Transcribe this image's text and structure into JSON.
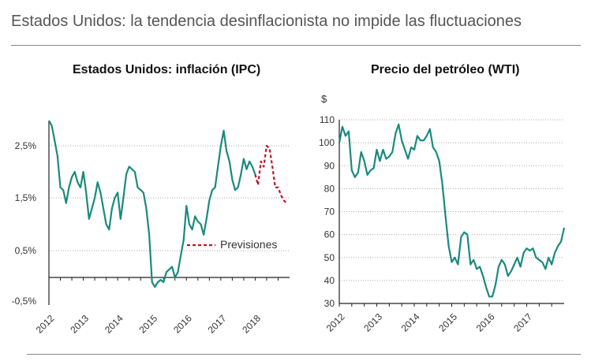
{
  "main_title": "Estados Unidos: la tendencia desinflacionista no impide las fluctuaciones",
  "colors": {
    "series": "#1a8a7d",
    "forecast": "#c0142b",
    "grid": "#aaaaaa",
    "axis": "#222222"
  },
  "chart_data": [
    {
      "type": "line",
      "title": "Estados Unidos: inflación (IPC)",
      "x_range": [
        2012.0,
        2019.0
      ],
      "ylim": [
        -0.5,
        3.0
      ],
      "y_ticks": [
        {
          "value": 2.5,
          "label": "2,5%"
        },
        {
          "value": 1.5,
          "label": "1,5%"
        },
        {
          "value": 0.5,
          "label": "0,5%"
        },
        {
          "value": -0.5,
          "label": "-0,5%"
        }
      ],
      "x_ticks": [
        {
          "value": 2012,
          "label": "2012"
        },
        {
          "value": 2013,
          "label": "2013"
        },
        {
          "value": 2014,
          "label": "2014"
        },
        {
          "value": 2015,
          "label": "2015"
        },
        {
          "value": 2016,
          "label": "2016"
        },
        {
          "value": 2017,
          "label": "2017"
        },
        {
          "value": 2018,
          "label": "2018"
        }
      ],
      "zero_line": 0,
      "legend_label": "Previsiones",
      "series": [
        {
          "name": "IPC",
          "style": "solid",
          "x": [
            2012.0,
            2012.083,
            2012.167,
            2012.25,
            2012.333,
            2012.417,
            2012.5,
            2012.583,
            2012.667,
            2012.75,
            2012.833,
            2012.917,
            2013.0,
            2013.083,
            2013.167,
            2013.25,
            2013.333,
            2013.417,
            2013.5,
            2013.583,
            2013.667,
            2013.75,
            2013.833,
            2013.917,
            2014.0,
            2014.083,
            2014.167,
            2014.25,
            2014.333,
            2014.417,
            2014.5,
            2014.583,
            2014.667,
            2014.75,
            2014.833,
            2014.917,
            2015.0,
            2015.083,
            2015.167,
            2015.25,
            2015.333,
            2015.417,
            2015.5,
            2015.583,
            2015.667,
            2015.75,
            2015.833,
            2015.917,
            2016.0,
            2016.083,
            2016.167,
            2016.25,
            2016.333,
            2016.417,
            2016.5,
            2016.583,
            2016.667,
            2016.75,
            2016.833,
            2016.917,
            2017.0,
            2017.083,
            2017.167,
            2017.25,
            2017.333,
            2017.417,
            2017.5,
            2017.583,
            2017.667,
            2017.75,
            2017.833,
            2017.917,
            2018.0
          ],
          "y": [
            3.0,
            2.9,
            2.6,
            2.3,
            1.7,
            1.65,
            1.4,
            1.7,
            1.9,
            2.0,
            1.8,
            1.7,
            2.0,
            1.6,
            1.1,
            1.3,
            1.5,
            1.8,
            1.6,
            1.3,
            1.0,
            0.9,
            1.3,
            1.5,
            1.6,
            1.1,
            1.5,
            1.95,
            2.1,
            2.05,
            2.0,
            1.7,
            1.65,
            1.6,
            1.3,
            0.8,
            -0.1,
            -0.2,
            -0.1,
            -0.05,
            -0.1,
            0.1,
            0.15,
            0.2,
            0.0,
            0.1,
            0.4,
            0.7,
            1.35,
            1.0,
            0.9,
            1.15,
            1.05,
            1.0,
            0.8,
            1.1,
            1.45,
            1.65,
            1.7,
            2.1,
            2.5,
            2.8,
            2.4,
            2.2,
            1.85,
            1.65,
            1.7,
            1.95,
            2.25,
            2.05,
            2.2,
            2.1,
            1.95
          ]
        },
        {
          "name": "Previsiones",
          "style": "dashed",
          "x": [
            2018.0,
            2018.083,
            2018.167,
            2018.25,
            2018.333,
            2018.417,
            2018.5,
            2018.583,
            2018.667,
            2018.75,
            2018.833,
            2018.917
          ],
          "y": [
            1.95,
            1.75,
            2.2,
            2.1,
            2.5,
            2.45,
            2.1,
            1.7,
            1.7,
            1.55,
            1.45,
            1.4
          ]
        }
      ]
    },
    {
      "type": "line",
      "title": "Precio del petróleo (WTI)",
      "ylabel": "$",
      "x_range": [
        2012.0,
        2018.0
      ],
      "ylim": [
        30,
        110
      ],
      "y_ticks": [
        {
          "value": 110,
          "label": "110"
        },
        {
          "value": 100,
          "label": "100"
        },
        {
          "value": 90,
          "label": "90"
        },
        {
          "value": 80,
          "label": "80"
        },
        {
          "value": 70,
          "label": "70"
        },
        {
          "value": 60,
          "label": "60"
        },
        {
          "value": 50,
          "label": "50"
        },
        {
          "value": 40,
          "label": "40"
        },
        {
          "value": 30,
          "label": "30"
        }
      ],
      "x_ticks": [
        {
          "value": 2012,
          "label": "2012"
        },
        {
          "value": 2013,
          "label": "2013"
        },
        {
          "value": 2014,
          "label": "2014"
        },
        {
          "value": 2015,
          "label": "2015"
        },
        {
          "value": 2016,
          "label": "2016"
        },
        {
          "value": 2017,
          "label": "2017"
        }
      ],
      "series": [
        {
          "name": "WTI",
          "style": "solid",
          "x": [
            2012.0,
            2012.083,
            2012.167,
            2012.25,
            2012.333,
            2012.417,
            2012.5,
            2012.583,
            2012.667,
            2012.75,
            2012.833,
            2012.917,
            2013.0,
            2013.083,
            2013.167,
            2013.25,
            2013.333,
            2013.417,
            2013.5,
            2013.583,
            2013.667,
            2013.75,
            2013.833,
            2013.917,
            2014.0,
            2014.083,
            2014.167,
            2014.25,
            2014.333,
            2014.417,
            2014.5,
            2014.583,
            2014.667,
            2014.75,
            2014.833,
            2014.917,
            2015.0,
            2015.083,
            2015.167,
            2015.25,
            2015.333,
            2015.417,
            2015.5,
            2015.583,
            2015.667,
            2015.75,
            2015.833,
            2015.917,
            2016.0,
            2016.083,
            2016.167,
            2016.25,
            2016.333,
            2016.417,
            2016.5,
            2016.583,
            2016.667,
            2016.75,
            2016.833,
            2016.917,
            2017.0,
            2017.083,
            2017.167,
            2017.25,
            2017.333,
            2017.417,
            2017.5,
            2017.583,
            2017.667,
            2017.75,
            2017.833,
            2017.917,
            2018.0
          ],
          "y": [
            100,
            107,
            103,
            105,
            88,
            85,
            87,
            96,
            92,
            86,
            88,
            89,
            97,
            92,
            97,
            93,
            94,
            96,
            104,
            108,
            101,
            97,
            93,
            98,
            97,
            103,
            101,
            101,
            103,
            106,
            98,
            96,
            92,
            82,
            68,
            55,
            48,
            50,
            47,
            59,
            61,
            60,
            47,
            49,
            45,
            46,
            42,
            37,
            33,
            33,
            38,
            46,
            49,
            47,
            42,
            44,
            47,
            50,
            46,
            52,
            54,
            53,
            54,
            50,
            49,
            48,
            45,
            50,
            47,
            52,
            55,
            57,
            63
          ]
        }
      ]
    }
  ]
}
